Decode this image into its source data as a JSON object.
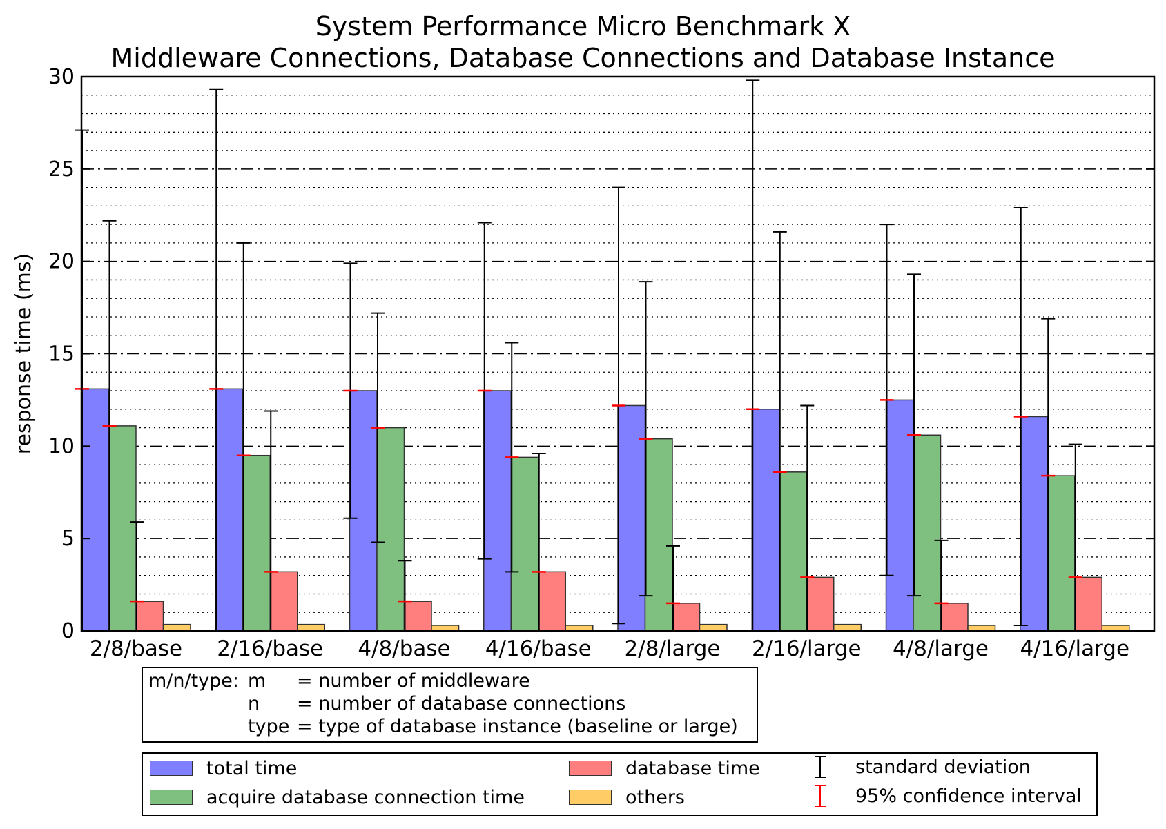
{
  "title": "System Performance Micro Benchmark X",
  "subtitle": "Middleware Connections, Database Connections and Database Instance",
  "chart_data": {
    "type": "bar",
    "ylabel": "response time (ms)",
    "xlabel": "",
    "ylim": [
      0,
      30
    ],
    "yticks": [
      0,
      5,
      10,
      15,
      20,
      25,
      30
    ],
    "grid": true,
    "categories": [
      "2/8/base",
      "2/16/base",
      "4/8/base",
      "4/16/base",
      "2/8/large",
      "2/16/large",
      "4/8/large",
      "4/16/large"
    ],
    "series": [
      {
        "name": "total time",
        "color": "#7f7fff",
        "values": [
          13.1,
          13.1,
          13.0,
          13.0,
          12.2,
          12.0,
          12.5,
          11.6
        ],
        "std": [
          14.0,
          16.2,
          6.9,
          9.1,
          11.8,
          17.8,
          9.5,
          11.3
        ]
      },
      {
        "name": "acquire database connection time",
        "color": "#7fbf7f",
        "values": [
          11.1,
          9.5,
          11.0,
          9.4,
          10.4,
          8.6,
          10.6,
          8.4
        ],
        "std": [
          11.1,
          11.5,
          6.2,
          6.2,
          8.5,
          13.0,
          8.7,
          8.5
        ]
      },
      {
        "name": "database time",
        "color": "#ff7f7f",
        "values": [
          1.6,
          3.2,
          1.6,
          3.2,
          1.5,
          2.9,
          1.5,
          2.9
        ],
        "std": [
          4.3,
          8.7,
          2.2,
          6.4,
          3.1,
          9.3,
          3.4,
          7.2
        ]
      },
      {
        "name": "others",
        "color": "#ffcc66",
        "values": [
          0.35,
          0.35,
          0.3,
          0.3,
          0.35,
          0.35,
          0.3,
          0.3
        ],
        "std": [
          0,
          0,
          0,
          0,
          0,
          0,
          0,
          0
        ]
      }
    ]
  },
  "note": {
    "line1_head": "m/n/type: ",
    "line1_key": "m",
    "line1_text": "= number of middleware",
    "line2_key": "n",
    "line2_text": "= number of database connections",
    "line3_key": "type",
    "line3_text": "= type of database instance (baseline or large)"
  },
  "legend": {
    "total": "total time",
    "acquire": "acquire database connection time",
    "database": "database time",
    "others": "others",
    "std": "standard deviation",
    "ci": "95% confidence interval",
    "std_color": "#000000",
    "ci_color": "#ff0000"
  }
}
